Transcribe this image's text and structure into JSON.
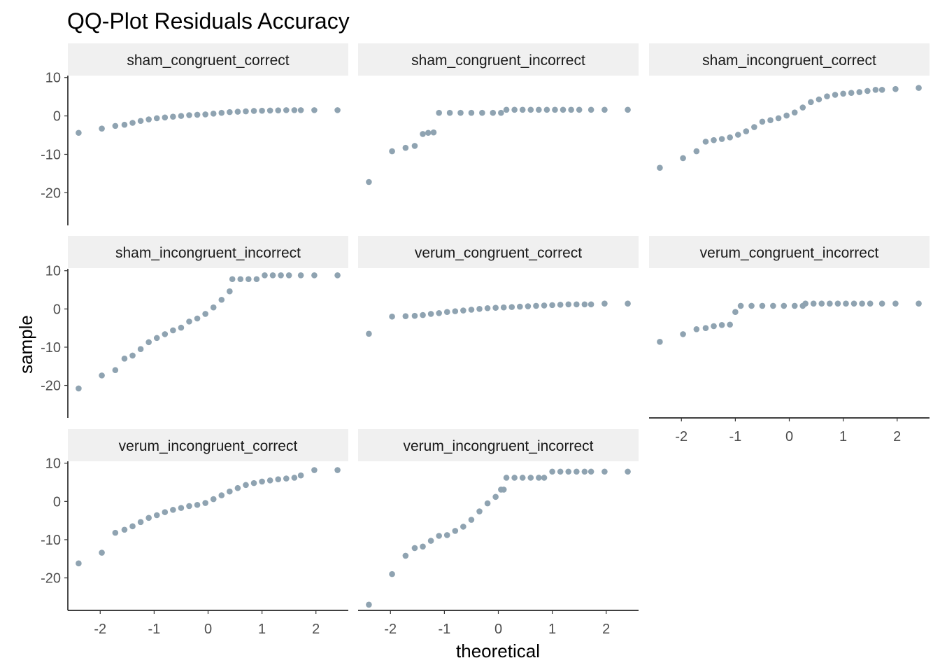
{
  "chart_data": {
    "type": "scatter",
    "title": "QQ-Plot Residuals Accuracy",
    "xlabel": "theoretical",
    "ylabel": "sample",
    "xlim": [
      -2.6,
      2.6
    ],
    "ylim": [
      -28.5,
      10.5
    ],
    "x_ticks": [
      -2,
      -1,
      0,
      1,
      2
    ],
    "y_ticks": [
      10,
      0,
      -10,
      -20
    ],
    "point_color": "#8fa3b1",
    "grid": false,
    "panels": [
      {
        "name": "sham_congruent_correct",
        "points": [
          [
            -2.4,
            -4.4
          ],
          [
            -1.97,
            -3.3
          ],
          [
            -1.72,
            -2.6
          ],
          [
            -1.55,
            -2.3
          ],
          [
            -1.4,
            -1.8
          ],
          [
            -1.25,
            -1.3
          ],
          [
            -1.1,
            -0.9
          ],
          [
            -0.95,
            -0.6
          ],
          [
            -0.8,
            -0.4
          ],
          [
            -0.65,
            -0.2
          ],
          [
            -0.5,
            0.0
          ],
          [
            -0.35,
            0.2
          ],
          [
            -0.2,
            0.3
          ],
          [
            -0.05,
            0.4
          ],
          [
            0.1,
            0.6
          ],
          [
            0.25,
            0.8
          ],
          [
            0.4,
            1.0
          ],
          [
            0.55,
            1.1
          ],
          [
            0.7,
            1.2
          ],
          [
            0.85,
            1.3
          ],
          [
            1.0,
            1.35
          ],
          [
            1.15,
            1.4
          ],
          [
            1.3,
            1.45
          ],
          [
            1.45,
            1.5
          ],
          [
            1.6,
            1.5
          ],
          [
            1.72,
            1.5
          ],
          [
            1.97,
            1.5
          ],
          [
            2.4,
            1.5
          ]
        ]
      },
      {
        "name": "sham_congruent_incorrect",
        "points": [
          [
            -2.4,
            -17.2
          ],
          [
            -1.97,
            -9.2
          ],
          [
            -1.72,
            -8.3
          ],
          [
            -1.55,
            -7.8
          ],
          [
            -1.4,
            -4.7
          ],
          [
            -1.3,
            -4.4
          ],
          [
            -1.2,
            -4.3
          ],
          [
            -1.1,
            0.8
          ],
          [
            -0.9,
            0.8
          ],
          [
            -0.7,
            0.8
          ],
          [
            -0.5,
            0.8
          ],
          [
            -0.3,
            0.8
          ],
          [
            -0.1,
            0.8
          ],
          [
            0.05,
            0.8
          ],
          [
            0.15,
            1.6
          ],
          [
            0.3,
            1.6
          ],
          [
            0.45,
            1.6
          ],
          [
            0.6,
            1.6
          ],
          [
            0.75,
            1.6
          ],
          [
            0.9,
            1.6
          ],
          [
            1.05,
            1.6
          ],
          [
            1.2,
            1.6
          ],
          [
            1.35,
            1.6
          ],
          [
            1.5,
            1.6
          ],
          [
            1.72,
            1.6
          ],
          [
            1.97,
            1.6
          ],
          [
            2.4,
            1.6
          ]
        ]
      },
      {
        "name": "sham_incongruent_correct",
        "points": [
          [
            -2.4,
            -13.5
          ],
          [
            -1.97,
            -11.0
          ],
          [
            -1.72,
            -9.2
          ],
          [
            -1.55,
            -6.7
          ],
          [
            -1.4,
            -6.3
          ],
          [
            -1.25,
            -6.0
          ],
          [
            -1.1,
            -5.6
          ],
          [
            -0.95,
            -4.9
          ],
          [
            -0.8,
            -4.0
          ],
          [
            -0.65,
            -2.9
          ],
          [
            -0.5,
            -1.5
          ],
          [
            -0.35,
            -1.1
          ],
          [
            -0.2,
            -0.6
          ],
          [
            -0.05,
            0.1
          ],
          [
            0.1,
            0.9
          ],
          [
            0.25,
            2.2
          ],
          [
            0.4,
            3.6
          ],
          [
            0.55,
            4.3
          ],
          [
            0.7,
            5.1
          ],
          [
            0.85,
            5.5
          ],
          [
            1.0,
            5.8
          ],
          [
            1.15,
            6.0
          ],
          [
            1.3,
            6.2
          ],
          [
            1.45,
            6.5
          ],
          [
            1.6,
            6.8
          ],
          [
            1.72,
            6.8
          ],
          [
            1.97,
            7.0
          ],
          [
            2.4,
            7.3
          ]
        ]
      },
      {
        "name": "sham_incongruent_incorrect",
        "points": [
          [
            -2.4,
            -20.8
          ],
          [
            -1.97,
            -17.4
          ],
          [
            -1.72,
            -16.0
          ],
          [
            -1.55,
            -13.0
          ],
          [
            -1.4,
            -12.2
          ],
          [
            -1.25,
            -10.5
          ],
          [
            -1.1,
            -8.7
          ],
          [
            -0.95,
            -7.6
          ],
          [
            -0.8,
            -6.6
          ],
          [
            -0.65,
            -5.6
          ],
          [
            -0.5,
            -4.9
          ],
          [
            -0.35,
            -3.3
          ],
          [
            -0.2,
            -2.5
          ],
          [
            -0.05,
            -1.3
          ],
          [
            0.1,
            0.4
          ],
          [
            0.25,
            2.4
          ],
          [
            0.4,
            4.6
          ],
          [
            0.45,
            7.8
          ],
          [
            0.6,
            7.8
          ],
          [
            0.75,
            7.8
          ],
          [
            0.9,
            7.8
          ],
          [
            1.05,
            8.8
          ],
          [
            1.2,
            8.8
          ],
          [
            1.35,
            8.8
          ],
          [
            1.5,
            8.8
          ],
          [
            1.72,
            8.8
          ],
          [
            1.97,
            8.8
          ],
          [
            2.4,
            8.8
          ]
        ]
      },
      {
        "name": "verum_congruent_correct",
        "points": [
          [
            -2.4,
            -6.5
          ],
          [
            -1.97,
            -2.0
          ],
          [
            -1.72,
            -1.9
          ],
          [
            -1.55,
            -1.8
          ],
          [
            -1.4,
            -1.6
          ],
          [
            -1.25,
            -1.3
          ],
          [
            -1.1,
            -1.1
          ],
          [
            -0.95,
            -0.8
          ],
          [
            -0.8,
            -0.6
          ],
          [
            -0.65,
            -0.4
          ],
          [
            -0.5,
            -0.2
          ],
          [
            -0.35,
            0.0
          ],
          [
            -0.2,
            0.2
          ],
          [
            -0.05,
            0.3
          ],
          [
            0.1,
            0.4
          ],
          [
            0.25,
            0.5
          ],
          [
            0.4,
            0.6
          ],
          [
            0.55,
            0.7
          ],
          [
            0.7,
            0.8
          ],
          [
            0.85,
            0.9
          ],
          [
            1.0,
            1.0
          ],
          [
            1.15,
            1.1
          ],
          [
            1.3,
            1.2
          ],
          [
            1.45,
            1.2
          ],
          [
            1.6,
            1.2
          ],
          [
            1.72,
            1.2
          ],
          [
            1.97,
            1.4
          ],
          [
            2.4,
            1.4
          ]
        ]
      },
      {
        "name": "verum_congruent_incorrect",
        "points": [
          [
            -2.4,
            -8.6
          ],
          [
            -1.97,
            -6.6
          ],
          [
            -1.72,
            -5.3
          ],
          [
            -1.55,
            -5.0
          ],
          [
            -1.4,
            -4.5
          ],
          [
            -1.25,
            -4.2
          ],
          [
            -1.1,
            -4.1
          ],
          [
            -1.0,
            -0.8
          ],
          [
            -0.9,
            0.8
          ],
          [
            -0.7,
            0.8
          ],
          [
            -0.5,
            0.8
          ],
          [
            -0.3,
            0.8
          ],
          [
            -0.1,
            0.8
          ],
          [
            0.1,
            0.8
          ],
          [
            0.25,
            0.8
          ],
          [
            0.3,
            1.4
          ],
          [
            0.45,
            1.4
          ],
          [
            0.6,
            1.4
          ],
          [
            0.75,
            1.4
          ],
          [
            0.9,
            1.4
          ],
          [
            1.05,
            1.4
          ],
          [
            1.2,
            1.4
          ],
          [
            1.35,
            1.4
          ],
          [
            1.5,
            1.4
          ],
          [
            1.72,
            1.4
          ],
          [
            1.97,
            1.4
          ],
          [
            2.4,
            1.4
          ]
        ]
      },
      {
        "name": "verum_incongruent_correct",
        "points": [
          [
            -2.4,
            -16.2
          ],
          [
            -1.97,
            -13.4
          ],
          [
            -1.72,
            -8.2
          ],
          [
            -1.55,
            -7.4
          ],
          [
            -1.4,
            -6.5
          ],
          [
            -1.25,
            -5.4
          ],
          [
            -1.1,
            -4.3
          ],
          [
            -0.95,
            -3.6
          ],
          [
            -0.8,
            -2.8
          ],
          [
            -0.65,
            -2.2
          ],
          [
            -0.5,
            -1.7
          ],
          [
            -0.35,
            -1.2
          ],
          [
            -0.2,
            -0.9
          ],
          [
            -0.05,
            -0.4
          ],
          [
            0.1,
            0.6
          ],
          [
            0.25,
            1.6
          ],
          [
            0.4,
            2.6
          ],
          [
            0.55,
            3.5
          ],
          [
            0.7,
            4.3
          ],
          [
            0.85,
            4.8
          ],
          [
            1.0,
            5.2
          ],
          [
            1.15,
            5.5
          ],
          [
            1.3,
            5.8
          ],
          [
            1.45,
            6.0
          ],
          [
            1.6,
            6.2
          ],
          [
            1.72,
            6.8
          ],
          [
            1.97,
            8.2
          ],
          [
            2.4,
            8.2
          ]
        ]
      },
      {
        "name": "verum_incongruent_incorrect",
        "points": [
          [
            -2.4,
            -27.0
          ],
          [
            -1.97,
            -19.0
          ],
          [
            -1.72,
            -14.2
          ],
          [
            -1.55,
            -12.2
          ],
          [
            -1.4,
            -11.8
          ],
          [
            -1.25,
            -10.3
          ],
          [
            -1.1,
            -9.0
          ],
          [
            -0.95,
            -8.8
          ],
          [
            -0.8,
            -7.7
          ],
          [
            -0.65,
            -6.6
          ],
          [
            -0.5,
            -4.8
          ],
          [
            -0.35,
            -2.6
          ],
          [
            -0.2,
            -0.5
          ],
          [
            -0.05,
            1.2
          ],
          [
            0.05,
            3.1
          ],
          [
            0.1,
            3.1
          ],
          [
            0.15,
            6.2
          ],
          [
            0.3,
            6.2
          ],
          [
            0.45,
            6.2
          ],
          [
            0.6,
            6.2
          ],
          [
            0.75,
            6.2
          ],
          [
            0.85,
            6.2
          ],
          [
            1.0,
            7.8
          ],
          [
            1.15,
            7.8
          ],
          [
            1.3,
            7.8
          ],
          [
            1.45,
            7.8
          ],
          [
            1.6,
            7.8
          ],
          [
            1.72,
            7.8
          ],
          [
            1.97,
            7.8
          ],
          [
            2.4,
            7.8
          ]
        ]
      }
    ]
  }
}
